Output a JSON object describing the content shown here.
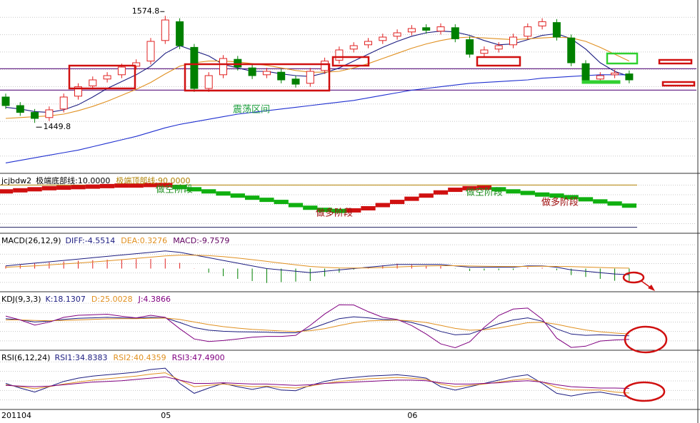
{
  "chart_data": [
    {
      "type": "candlestick",
      "categories": [
        "201104",
        null,
        null,
        null,
        null,
        null,
        null,
        null,
        null,
        null,
        null,
        "05",
        null,
        null,
        null,
        null,
        null,
        null,
        null,
        null,
        null,
        null,
        null,
        null,
        null,
        null,
        null,
        null,
        "06",
        null,
        null,
        null,
        null,
        null,
        null,
        null,
        null,
        null,
        null,
        null,
        null,
        null,
        null,
        null
      ],
      "open": [
        1480,
        1470,
        1462,
        1456,
        1466,
        1481,
        1493,
        1501,
        1506,
        1516,
        1522,
        1546,
        1568,
        1538,
        1490,
        1506,
        1524,
        1514,
        1506,
        1509,
        1501,
        1496,
        1511,
        1523,
        1536,
        1541,
        1546,
        1551,
        1556,
        1561,
        1557,
        1561,
        1547,
        1531,
        1536,
        1541,
        1551,
        1563,
        1567,
        1549,
        1519,
        1501,
        1506,
        1507
      ],
      "high": [
        1484,
        1474,
        1466,
        1469,
        1484,
        1496,
        1504,
        1509,
        1519,
        1524,
        1549,
        1574.8,
        1572,
        1542,
        1509,
        1529,
        1528,
        1518,
        1514,
        1513,
        1505,
        1514,
        1526,
        1539,
        1544,
        1549,
        1554,
        1559,
        1564,
        1565,
        1566,
        1565,
        1551,
        1539,
        1544,
        1554,
        1566,
        1572,
        1571,
        1553,
        1523,
        1509,
        1512,
        1511
      ],
      "low": [
        1466,
        1458,
        1449.8,
        1452,
        1462,
        1477,
        1489,
        1497,
        1502,
        1512,
        1518,
        1542,
        1536,
        1486,
        1486,
        1502,
        1511,
        1501,
        1502,
        1496,
        1491,
        1492,
        1507,
        1519,
        1532,
        1537,
        1542,
        1547,
        1552,
        1554,
        1553,
        1544,
        1526,
        1527,
        1532,
        1537,
        1547,
        1559,
        1546,
        1516,
        1496,
        1497,
        1502,
        1496
      ],
      "close": [
        1470,
        1462,
        1455,
        1465,
        1480,
        1492,
        1500,
        1505,
        1515,
        1520,
        1545,
        1570,
        1540,
        1490,
        1505,
        1525,
        1515,
        1505,
        1510,
        1500,
        1495,
        1510,
        1522,
        1535,
        1540,
        1545,
        1550,
        1555,
        1560,
        1558,
        1562,
        1548,
        1530,
        1535,
        1540,
        1550,
        1562,
        1568,
        1550,
        1520,
        1500,
        1505,
        1508,
        1500
      ],
      "up_color": "#e02020",
      "down_color": "#008000",
      "series": [
        {
          "color": "#1c1c80",
          "values": [
            1468,
            1466,
            1463,
            1462,
            1465,
            1471,
            1480,
            1490,
            1498,
            1506,
            1516,
            1531,
            1540,
            1534,
            1528,
            1518,
            1514,
            1510,
            1510,
            1507,
            1505,
            1504,
            1508,
            1514,
            1522,
            1530,
            1538,
            1545,
            1551,
            1555,
            1557,
            1556,
            1552,
            1546,
            1541,
            1542,
            1547,
            1552,
            1554,
            1548,
            1536,
            1520,
            1510,
            1504
          ]
        },
        {
          "color": "#e09020",
          "values": [
            1455,
            1456,
            1457,
            1458,
            1460,
            1464,
            1469,
            1475,
            1482,
            1489,
            1497,
            1507,
            1516,
            1520,
            1522,
            1522,
            1521,
            1519,
            1517,
            1514,
            1511,
            1509,
            1509,
            1510,
            1514,
            1519,
            1525,
            1531,
            1537,
            1542,
            1546,
            1549,
            1550,
            1549,
            1548,
            1547,
            1548,
            1549,
            1550,
            1549,
            1545,
            1538,
            1530,
            1522
          ]
        },
        {
          "color": "#2030d0",
          "values": [
            1403,
            1406,
            1409,
            1412,
            1415,
            1418,
            1422,
            1426,
            1430,
            1434,
            1439,
            1444,
            1448,
            1451,
            1454,
            1457,
            1460,
            1462,
            1464,
            1466,
            1468,
            1470,
            1472,
            1474,
            1476,
            1479,
            1482,
            1485,
            1488,
            1490,
            1492,
            1494,
            1496,
            1497,
            1498,
            1499,
            1500,
            1502,
            1503,
            1504,
            1505,
            1506,
            1506,
            1506
          ]
        }
      ],
      "hlines": [
        1513,
        1488
      ],
      "hline_color": "#6a2a8a",
      "annotations": [
        "1574.8",
        "1449.8",
        "震荡区间"
      ],
      "ylim": [
        1395,
        1590
      ]
    },
    {
      "type": "step",
      "title": "jcjbdw2",
      "series": [
        {
          "name": "极端底部线:10.0000",
          "color": "#202060",
          "value": 10
        },
        {
          "name": "极端顶部线:90.0000",
          "color": "#b08000",
          "value": 90
        }
      ],
      "values": [
        78,
        80,
        82,
        84,
        85,
        86,
        87,
        88,
        89,
        89,
        90,
        90,
        86,
        82,
        78,
        74,
        70,
        66,
        62,
        58,
        52,
        47,
        43,
        41,
        42,
        46,
        52,
        58,
        64,
        70,
        76,
        81,
        84,
        85,
        82,
        78,
        75,
        72,
        70,
        67,
        63,
        59,
        55,
        51
      ],
      "up_color": "#d01010",
      "down_color": "#10b010",
      "annotations": [
        "做空阶段",
        "做多阶段",
        "做空阶段",
        "做多阶段"
      ],
      "ylim": [
        0,
        100
      ]
    },
    {
      "type": "macd",
      "title": "MACD(26,12,9)",
      "series": [
        {
          "name": "DIFF:-4.5514",
          "color": "#1c1c80",
          "values": [
            2,
            3,
            4,
            5,
            6,
            7,
            8,
            9,
            10,
            11,
            12,
            13,
            12,
            10,
            8,
            6,
            4,
            2,
            0,
            -1,
            -2,
            -3,
            -2,
            -1,
            0,
            1,
            2,
            3,
            3,
            3,
            3,
            2,
            1,
            1,
            1,
            1,
            2,
            2,
            1,
            -1,
            -2,
            -3,
            -4,
            -4.5514
          ]
        },
        {
          "name": "DEA:0.3276",
          "color": "#e09020",
          "values": [
            1,
            1.5,
            2,
            2.7,
            3.4,
            4.1,
            4.9,
            5.7,
            6.6,
            7.5,
            8.4,
            9.3,
            9.9,
            9.9,
            9.5,
            8.8,
            7.8,
            6.6,
            5.3,
            4,
            2.8,
            1.6,
            0.9,
            0.5,
            0.4,
            0.5,
            0.8,
            1.2,
            1.6,
            1.9,
            2.1,
            2.1,
            1.9,
            1.7,
            1.6,
            1.5,
            1.6,
            1.7,
            1.6,
            1.4,
            1.1,
            0.8,
            0.5,
            0.3276
          ]
        }
      ],
      "histogram": {
        "name": "MACD:-9.7579",
        "up_color": "#e02020",
        "down_color": "#008000",
        "values": [
          2,
          3,
          4,
          4.6,
          5.2,
          5.8,
          6.2,
          6.6,
          6.8,
          7,
          7.2,
          7.4,
          4.2,
          0.2,
          -3,
          -5.6,
          -7.6,
          -9.2,
          -10.6,
          -10,
          -9.6,
          -9.2,
          -5.8,
          -3,
          -0.8,
          1,
          2.4,
          3.6,
          2.8,
          2.2,
          1.8,
          -0.2,
          -1.8,
          -1.4,
          -1.2,
          -1,
          0.8,
          0.6,
          -1.2,
          -4.8,
          -6.2,
          -7.6,
          -9,
          -9.7579
        ]
      },
      "ylim": [
        -15,
        15
      ]
    },
    {
      "type": "line",
      "title": "KDJ(9,3,3)",
      "series": [
        {
          "name": "K:18.1307",
          "color": "#1c1c80",
          "values": [
            85,
            80,
            72,
            75,
            82,
            86,
            88,
            90,
            88,
            86,
            90,
            88,
            70,
            50,
            40,
            36,
            34,
            33,
            32,
            30,
            30,
            45,
            65,
            85,
            92,
            88,
            82,
            80,
            70,
            55,
            35,
            22,
            25,
            45,
            65,
            80,
            88,
            75,
            45,
            25,
            20,
            22,
            20,
            18.1307
          ]
        },
        {
          "name": "D:25.0028",
          "color": "#e09020",
          "values": [
            80,
            80,
            78,
            77,
            78,
            80,
            82,
            84,
            85,
            85,
            86,
            87,
            82,
            72,
            62,
            54,
            48,
            43,
            40,
            37,
            35,
            38,
            46,
            58,
            69,
            76,
            78,
            79,
            76,
            70,
            59,
            47,
            40,
            42,
            49,
            59,
            69,
            71,
            63,
            51,
            41,
            34,
            29,
            25.0028
          ]
        },
        {
          "name": "J:4.3866",
          "color": "#800080",
          "values": [
            95,
            80,
            60,
            71,
            90,
            98,
            100,
            102,
            94,
            88,
            98,
            90,
            46,
            6,
            -4,
            0,
            6,
            13,
            16,
            16,
            20,
            59,
            103,
            139,
            138,
            112,
            90,
            82,
            58,
            25,
            -13,
            -28,
            -5,
            51,
            97,
            122,
            126,
            83,
            9,
            -27,
            -22,
            -2,
            2,
            4.3866
          ]
        }
      ],
      "ylim": [
        -35,
        145
      ]
    },
    {
      "type": "line",
      "title": "RSI(6,12,24)",
      "series": [
        {
          "name": "RSI1:34.8383",
          "color": "#1c1c80",
          "values": [
            55,
            48,
            42,
            50,
            58,
            63,
            66,
            68,
            70,
            72,
            76,
            78,
            55,
            40,
            48,
            55,
            50,
            46,
            50,
            45,
            44,
            52,
            58,
            62,
            64,
            66,
            67,
            68,
            66,
            63,
            50,
            45,
            50,
            55,
            60,
            65,
            68,
            55,
            40,
            36,
            40,
            42,
            38,
            34.8383
          ]
        },
        {
          "name": "RSI2:40.4359",
          "color": "#e09020",
          "values": [
            53,
            50,
            47,
            50,
            54,
            57,
            60,
            62,
            64,
            66,
            69,
            71,
            60,
            50,
            52,
            54,
            52,
            50,
            51,
            49,
            48,
            51,
            55,
            58,
            60,
            62,
            63,
            64,
            63,
            61,
            54,
            50,
            52,
            54,
            57,
            60,
            62,
            57,
            49,
            45,
            45,
            45,
            42,
            40.4359
          ]
        },
        {
          "name": "RSI3:47.4900",
          "color": "#800080",
          "values": [
            52,
            51,
            50,
            51,
            53,
            55,
            57,
            58,
            59,
            61,
            63,
            65,
            60,
            55,
            55,
            56,
            55,
            54,
            54,
            53,
            52,
            53,
            55,
            56,
            57,
            58,
            59,
            60,
            60,
            59,
            56,
            54,
            54,
            55,
            56,
            58,
            59,
            57,
            53,
            50,
            49,
            48,
            48,
            47.49
          ]
        }
      ],
      "ylim": [
        20,
        90
      ]
    }
  ]
}
